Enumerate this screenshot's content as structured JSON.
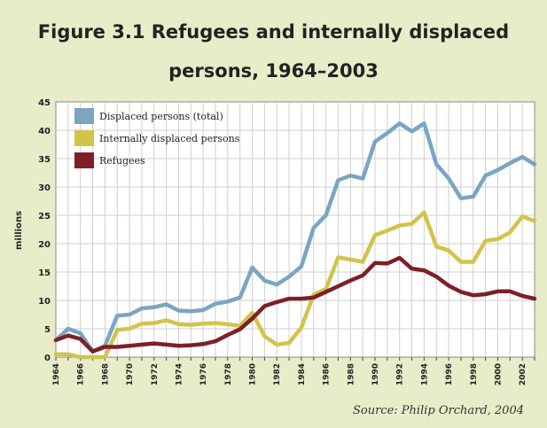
{
  "title_line1": "Figure 3.1 Refugees and internally displaced",
  "title_line2": "persons, 1964–2003",
  "source": "Source: Philip Orchard, 2004",
  "chart_data": {
    "type": "line",
    "ylabel": "millions",
    "ylim": [
      0,
      45
    ],
    "xlim": [
      1964,
      2003
    ],
    "y_ticks": [
      0,
      5,
      10,
      15,
      20,
      25,
      30,
      35,
      40,
      45
    ],
    "x_ticks": [
      "1964",
      "1966",
      "1968",
      "1970",
      "1972",
      "1974",
      "1976",
      "1978",
      "1980",
      "1982",
      "1984",
      "1986",
      "1988",
      "1990",
      "1992",
      "1994",
      "1996",
      "1998",
      "2000",
      "2002"
    ],
    "grid": true,
    "legend_position": "top-left",
    "x": [
      1964,
      1965,
      1966,
      1967,
      1968,
      1969,
      1970,
      1971,
      1972,
      1973,
      1974,
      1975,
      1976,
      1977,
      1978,
      1979,
      1980,
      1981,
      1982,
      1983,
      1984,
      1985,
      1986,
      1987,
      1988,
      1989,
      1990,
      1991,
      1992,
      1993,
      1994,
      1995,
      1996,
      1997,
      1998,
      1999,
      2000,
      2001,
      2002,
      2003
    ],
    "series": [
      {
        "name": "Displaced persons (total)",
        "color": "#7ba5c2",
        "values": [
          3,
          5,
          4.2,
          1,
          2,
          7.3,
          7.5,
          8.6,
          8.8,
          9.3,
          8.2,
          8.1,
          8.3,
          9.4,
          9.8,
          10.5,
          15.8,
          13.5,
          12.8,
          14.2,
          16,
          22.8,
          25,
          31.2,
          32,
          31.5,
          38,
          39.5,
          41.2,
          39.8,
          41.2,
          34,
          31.5,
          28,
          28.3,
          32,
          33,
          34.2,
          35.3,
          34
        ]
      },
      {
        "name": "Internally displaced persons",
        "color": "#d1c44a",
        "values": [
          0.5,
          0.5,
          0,
          0,
          0,
          4.8,
          5,
          5.9,
          6,
          6.5,
          5.8,
          5.7,
          5.9,
          6,
          5.8,
          5.5,
          7.8,
          3.7,
          2.2,
          2.5,
          5.2,
          11,
          12,
          17.6,
          17.2,
          16.8,
          21.5,
          22.3,
          23.2,
          23.5,
          25.5,
          19.5,
          18.8,
          16.8,
          16.8,
          20.5,
          20.8,
          22,
          24.8,
          24
        ]
      },
      {
        "name": "Refugees",
        "color": "#7e1f27",
        "values": [
          3,
          3.8,
          3.2,
          1,
          1.8,
          1.8,
          2,
          2.2,
          2.4,
          2.2,
          2,
          2.1,
          2.3,
          2.8,
          3.9,
          4.9,
          6.8,
          9,
          9.7,
          10.3,
          10.3,
          10.5,
          11.5,
          12.5,
          13.5,
          14.4,
          16.6,
          16.5,
          17.5,
          15.6,
          15.3,
          14.2,
          12.6,
          11.5,
          10.9,
          11.1,
          11.6,
          11.6,
          10.8,
          10.3
        ]
      }
    ]
  }
}
